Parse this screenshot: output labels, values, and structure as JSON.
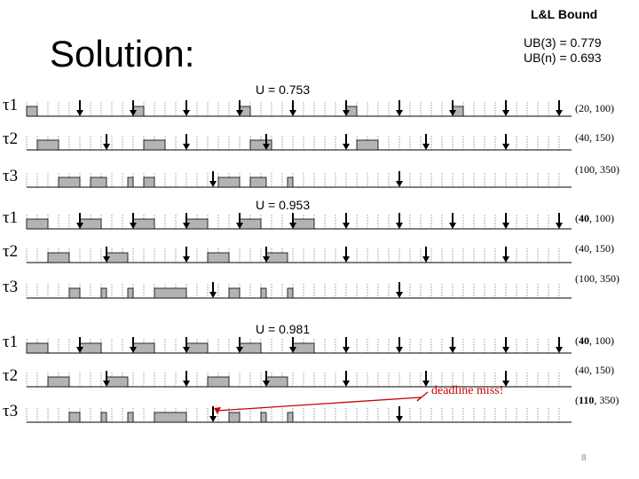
{
  "slide": {
    "title": "Solution:",
    "page_number": "8"
  },
  "bound": {
    "title": "L&L Bound",
    "ub3": "UB(3) = 0.779",
    "ubn": "UB(n) = 0.693"
  },
  "units_per_tick": 20,
  "panels": [
    {
      "utilization": "U = 0.753",
      "tasks": [
        {
          "label": "τ1",
          "param_pre": "(",
          "param_bold": "",
          "param_post": "20, 100)",
          "period": 100,
          "execs": [
            [
              0,
              20
            ],
            [
              200,
              220
            ],
            [
              400,
              420
            ],
            [
              600,
              620
            ],
            [
              800,
              820
            ]
          ]
        },
        {
          "label": "τ2",
          "param_pre": "(",
          "param_bold": "",
          "param_post": "40, 150)",
          "period": 150,
          "execs": [
            [
              20,
              60
            ],
            [
              220,
              260
            ],
            [
              420,
              460
            ],
            [
              620,
              660
            ]
          ]
        },
        {
          "label": "τ3",
          "param_pre": "(",
          "param_bold": "",
          "param_post": "100, 350)",
          "period": 350,
          "execs": [
            [
              60,
              100
            ],
            [
              120,
              150
            ],
            [
              190,
              200
            ],
            [
              220,
              240
            ],
            [
              360,
              400
            ],
            [
              420,
              450
            ],
            [
              490,
              500
            ]
          ]
        }
      ]
    },
    {
      "utilization": "U = 0.953",
      "tasks": [
        {
          "label": "τ1",
          "param_pre": "(",
          "param_bold": "40",
          "param_post": ", 100)",
          "period": 100,
          "execs": [
            [
              0,
              40
            ],
            [
              100,
              140
            ],
            [
              200,
              240
            ],
            [
              300,
              340
            ],
            [
              400,
              440
            ],
            [
              500,
              540
            ]
          ]
        },
        {
          "label": "τ2",
          "param_pre": "(",
          "param_bold": "",
          "param_post": "40, 150)",
          "period": 150,
          "execs": [
            [
              40,
              80
            ],
            [
              150,
              190
            ],
            [
              340,
              380
            ],
            [
              450,
              490
            ]
          ]
        },
        {
          "label": "τ3",
          "param_pre": "(",
          "param_bold": "",
          "param_post": "100, 350)",
          "period": 350,
          "execs": [
            [
              80,
              100
            ],
            [
              140,
              150
            ],
            [
              190,
              200
            ],
            [
              240,
              300
            ],
            [
              380,
              400
            ],
            [
              440,
              450
            ],
            [
              490,
              500
            ]
          ]
        }
      ]
    },
    {
      "utilization": "U = 0.981",
      "tasks": [
        {
          "label": "τ1",
          "param_pre": "(",
          "param_bold": "40",
          "param_post": ", 100)",
          "period": 100,
          "execs": [
            [
              0,
              40
            ],
            [
              100,
              140
            ],
            [
              200,
              240
            ],
            [
              300,
              340
            ],
            [
              400,
              440
            ],
            [
              500,
              540
            ]
          ]
        },
        {
          "label": "τ2",
          "param_pre": "(",
          "param_bold": "",
          "param_post": "40, 150)",
          "period": 150,
          "execs": [
            [
              40,
              80
            ],
            [
              150,
              190
            ],
            [
              340,
              380
            ],
            [
              450,
              490
            ]
          ]
        },
        {
          "label": "τ3",
          "param_pre": "(",
          "param_bold": "110",
          "param_post": ", 350)",
          "period": 350,
          "execs": [
            [
              80,
              100
            ],
            [
              140,
              150
            ],
            [
              190,
              200
            ],
            [
              240,
              300
            ],
            [
              380,
              400
            ],
            [
              440,
              450
            ],
            [
              490,
              500
            ]
          ]
        }
      ],
      "annotation": "deadline miss!"
    }
  ]
}
